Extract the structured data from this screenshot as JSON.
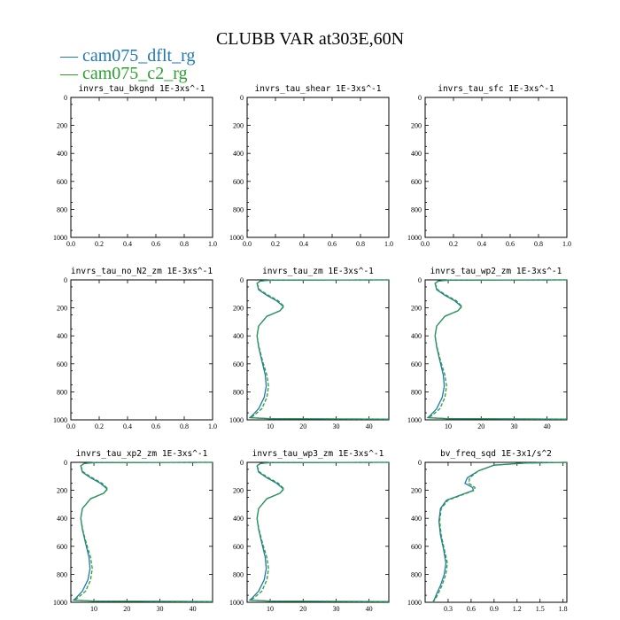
{
  "title": "CLUBB VAR at303E,60N",
  "legend": [
    {
      "label": "cam075_dflt_rg",
      "color": "#1f77b4"
    },
    {
      "label": "cam075_c2_rg",
      "color": "#2ca02c"
    }
  ],
  "chart_data": [
    {
      "type": "line",
      "title": "invrs_tau_bkgnd   1E-3xs^-1",
      "xlim": [
        0,
        1
      ],
      "ylim": [
        1000,
        0
      ],
      "xticks": [
        "0.0",
        "0.2",
        "0.4",
        "0.6",
        "0.8",
        "1.0"
      ],
      "yticks": [
        "0",
        "200",
        "400",
        "600",
        "800",
        "1000"
      ],
      "series": []
    },
    {
      "type": "line",
      "title": "invrs_tau_shear   1E-3xs^-1",
      "xlim": [
        0,
        1
      ],
      "ylim": [
        1000,
        0
      ],
      "xticks": [
        "0.0",
        "0.2",
        "0.4",
        "0.6",
        "0.8",
        "1.0"
      ],
      "yticks": [
        "0",
        "200",
        "400",
        "600",
        "800",
        "1000"
      ],
      "series": []
    },
    {
      "type": "line",
      "title": "invrs_tau_sfc   1E-3xs^-1",
      "xlim": [
        0,
        1
      ],
      "ylim": [
        1000,
        0
      ],
      "xticks": [
        "0.0",
        "0.2",
        "0.4",
        "0.6",
        "0.8",
        "1.0"
      ],
      "yticks": [
        "0",
        "200",
        "400",
        "600",
        "800",
        "1000"
      ],
      "series": []
    },
    {
      "type": "line",
      "title": "invrs_tau_no_N2_zm   1E-3xs^-1",
      "xlim": [
        0,
        1
      ],
      "ylim": [
        1000,
        0
      ],
      "xticks": [
        "0.0",
        "0.2",
        "0.4",
        "0.6",
        "0.8",
        "1.0"
      ],
      "yticks": [
        "0",
        "200",
        "400",
        "600",
        "800",
        "1000"
      ],
      "series": []
    },
    {
      "type": "line",
      "title": "invrs_tau_zm   1E-3xs^-1",
      "xlim": [
        3,
        46
      ],
      "ylim": [
        1000,
        0
      ],
      "xticks": [
        "10",
        "20",
        "30",
        "40"
      ],
      "yticks": [
        "0",
        "200",
        "400",
        "600",
        "800",
        "1000"
      ],
      "series": [
        {
          "color": "#1f77b4",
          "dash": false,
          "x": [
            46,
            10,
            7,
            6,
            6.5,
            9,
            12,
            14,
            13,
            9,
            6.5,
            6,
            6.5,
            7.5,
            8.5,
            8.8,
            8.2,
            6.5,
            4.5,
            3.8,
            10,
            46
          ],
          "y": [
            0,
            2,
            8,
            25,
            70,
            110,
            150,
            190,
            220,
            260,
            330,
            400,
            480,
            580,
            680,
            760,
            840,
            920,
            970,
            985,
            992,
            995
          ]
        },
        {
          "color": "#2ca02c",
          "dash": true,
          "x": [
            46,
            10,
            7,
            6,
            6.8,
            9.5,
            12.5,
            14.2,
            13,
            9,
            6.5,
            6,
            6.6,
            7.7,
            9,
            9.5,
            9,
            7.5,
            5,
            4,
            10,
            46
          ],
          "y": [
            0,
            2,
            8,
            25,
            70,
            110,
            150,
            190,
            220,
            260,
            330,
            400,
            480,
            580,
            680,
            760,
            840,
            920,
            970,
            985,
            992,
            995
          ]
        }
      ]
    },
    {
      "type": "line",
      "title": "invrs_tau_wp2_zm   1E-3xs^-1",
      "xlim": [
        3,
        46
      ],
      "ylim": [
        1000,
        0
      ],
      "xticks": [
        "10",
        "20",
        "30",
        "40"
      ],
      "yticks": [
        "0",
        "200",
        "400",
        "600",
        "800",
        "1000"
      ],
      "series": [
        {
          "color": "#1f77b4",
          "dash": false,
          "x": [
            46,
            10,
            7,
            6,
            6.5,
            9,
            12,
            14,
            13,
            9,
            6.5,
            6,
            6.5,
            7.5,
            8.5,
            8.8,
            8.2,
            6.5,
            4.5,
            3.8,
            10,
            46
          ],
          "y": [
            0,
            2,
            8,
            25,
            70,
            110,
            150,
            190,
            220,
            260,
            330,
            400,
            480,
            580,
            680,
            760,
            840,
            920,
            970,
            985,
            992,
            995
          ]
        },
        {
          "color": "#2ca02c",
          "dash": true,
          "x": [
            46,
            10,
            7,
            6,
            6.8,
            9.5,
            12.5,
            14.2,
            13,
            9,
            6.5,
            6,
            6.6,
            7.7,
            9,
            9.5,
            9,
            7.5,
            5,
            4,
            10,
            46
          ],
          "y": [
            0,
            2,
            8,
            25,
            70,
            110,
            150,
            190,
            220,
            260,
            330,
            400,
            480,
            580,
            680,
            760,
            840,
            920,
            970,
            985,
            992,
            995
          ]
        }
      ]
    },
    {
      "type": "line",
      "title": "invrs_tau_xp2_zm   1E-3xs^-1",
      "xlim": [
        3,
        46
      ],
      "ylim": [
        1000,
        0
      ],
      "xticks": [
        "10",
        "20",
        "30",
        "40"
      ],
      "yticks": [
        "0",
        "200",
        "400",
        "600",
        "800",
        "1000"
      ],
      "series": [
        {
          "color": "#1f77b4",
          "dash": false,
          "x": [
            46,
            10,
            7,
            6,
            6.5,
            9,
            12,
            14,
            13,
            9,
            6.5,
            6,
            6.5,
            7.5,
            8.5,
            8.8,
            8.2,
            6.5,
            4.5,
            3.8,
            10,
            46
          ],
          "y": [
            0,
            2,
            8,
            25,
            70,
            110,
            150,
            190,
            220,
            260,
            330,
            400,
            480,
            580,
            680,
            760,
            840,
            920,
            970,
            985,
            992,
            995
          ]
        },
        {
          "color": "#2ca02c",
          "dash": true,
          "x": [
            46,
            10,
            7,
            6,
            6.8,
            9.5,
            12.5,
            14.2,
            13,
            9,
            6.5,
            6,
            6.6,
            7.7,
            9,
            9.5,
            9,
            7.5,
            5,
            4,
            10,
            46
          ],
          "y": [
            0,
            2,
            8,
            25,
            70,
            110,
            150,
            190,
            220,
            260,
            330,
            400,
            480,
            580,
            680,
            760,
            840,
            920,
            970,
            985,
            992,
            995
          ]
        }
      ]
    },
    {
      "type": "line",
      "title": "invrs_tau_wp3_zm   1E-3xs^-1",
      "xlim": [
        3,
        46
      ],
      "ylim": [
        1000,
        0
      ],
      "xticks": [
        "10",
        "20",
        "30",
        "40"
      ],
      "yticks": [
        "0",
        "200",
        "400",
        "600",
        "800",
        "1000"
      ],
      "series": [
        {
          "color": "#1f77b4",
          "dash": false,
          "x": [
            46,
            10,
            7,
            6,
            6.5,
            9,
            12,
            14,
            13,
            9,
            6.5,
            6,
            6.5,
            7.5,
            8.5,
            8.8,
            8.2,
            6.5,
            4.5,
            3.8,
            10,
            46
          ],
          "y": [
            0,
            2,
            8,
            25,
            70,
            110,
            150,
            190,
            220,
            260,
            330,
            400,
            480,
            580,
            680,
            760,
            840,
            920,
            970,
            985,
            992,
            995
          ]
        },
        {
          "color": "#2ca02c",
          "dash": true,
          "x": [
            46,
            10,
            7,
            6,
            6.8,
            9.5,
            12.5,
            14.2,
            13,
            9,
            6.5,
            6,
            6.6,
            7.7,
            9,
            9.5,
            9,
            7.5,
            5,
            4,
            10,
            46
          ],
          "y": [
            0,
            2,
            8,
            25,
            70,
            110,
            150,
            190,
            220,
            260,
            330,
            400,
            480,
            580,
            680,
            760,
            840,
            920,
            970,
            985,
            992,
            995
          ]
        }
      ]
    },
    {
      "type": "line",
      "title": "bv_freq_sqd   1E-3x1/s^2",
      "xlim": [
        0,
        1.85
      ],
      "ylim": [
        1000,
        0
      ],
      "xticks": [
        "0.3",
        "0.6",
        "0.9",
        "1.2",
        "1.5",
        "1.8"
      ],
      "xtickvals": [
        0.3,
        0.6,
        0.9,
        1.2,
        1.5,
        1.8
      ],
      "yticks": [
        "0",
        "200",
        "400",
        "600",
        "800",
        "1000"
      ],
      "series": [
        {
          "color": "#1f77b4",
          "dash": false,
          "x": [
            1.85,
            1.3,
            0.9,
            0.7,
            0.55,
            0.52,
            0.62,
            0.63,
            0.48,
            0.28,
            0.2,
            0.18,
            0.2,
            0.24,
            0.27,
            0.25,
            0.2,
            0.15,
            0.12,
            0.1
          ],
          "y": [
            0,
            5,
            20,
            60,
            110,
            150,
            180,
            200,
            230,
            270,
            330,
            420,
            520,
            620,
            720,
            800,
            880,
            940,
            980,
            1000
          ]
        },
        {
          "color": "#2ca02c",
          "dash": true,
          "x": [
            1.85,
            1.3,
            0.9,
            0.7,
            0.58,
            0.57,
            0.65,
            0.64,
            0.5,
            0.3,
            0.21,
            0.19,
            0.21,
            0.25,
            0.29,
            0.27,
            0.22,
            0.17,
            0.13,
            0.1
          ],
          "y": [
            0,
            5,
            20,
            60,
            110,
            150,
            180,
            200,
            230,
            270,
            330,
            420,
            520,
            620,
            720,
            800,
            880,
            940,
            980,
            1000
          ]
        }
      ]
    }
  ]
}
